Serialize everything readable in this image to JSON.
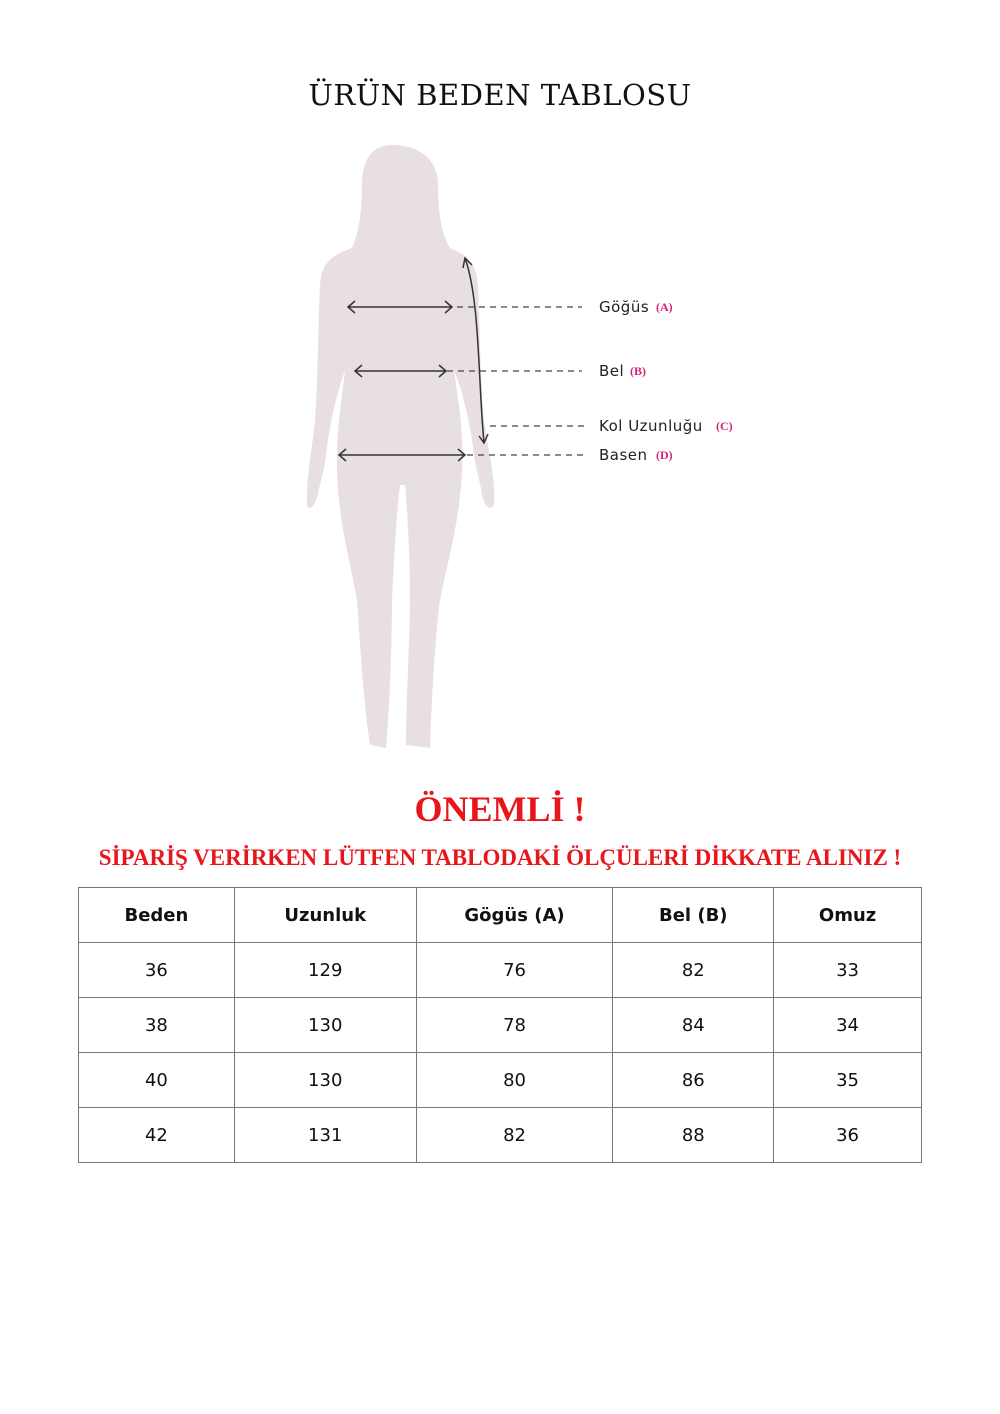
{
  "title": "ÜRÜN BEDEN TABLOSU",
  "diagram": {
    "labels": [
      {
        "text": "Göğüs",
        "code": "(A)"
      },
      {
        "text": "Bel",
        "code": "(B)"
      },
      {
        "text": "Kol Uzunluğu",
        "code": "(C)"
      },
      {
        "text": "Basen",
        "code": "(D)"
      }
    ],
    "colors": {
      "silhouette": "#e8dfe0",
      "code": "#d6237a"
    }
  },
  "notice": {
    "heading": "ÖNEMLİ !",
    "message": "SİPARİŞ VERİRKEN LÜTFEN TABLODAKİ ÖLÇÜLERİ DİKKATE ALINIZ !",
    "color": "#e8151b"
  },
  "table": {
    "headers": [
      "Beden",
      "Uzunluk",
      "Gögüs (A)",
      "Bel (B)",
      "Omuz"
    ],
    "rows": [
      [
        "36",
        "129",
        "76",
        "82",
        "33"
      ],
      [
        "38",
        "130",
        "78",
        "84",
        "34"
      ],
      [
        "40",
        "130",
        "80",
        "86",
        "35"
      ],
      [
        "42",
        "131",
        "82",
        "88",
        "36"
      ]
    ]
  }
}
